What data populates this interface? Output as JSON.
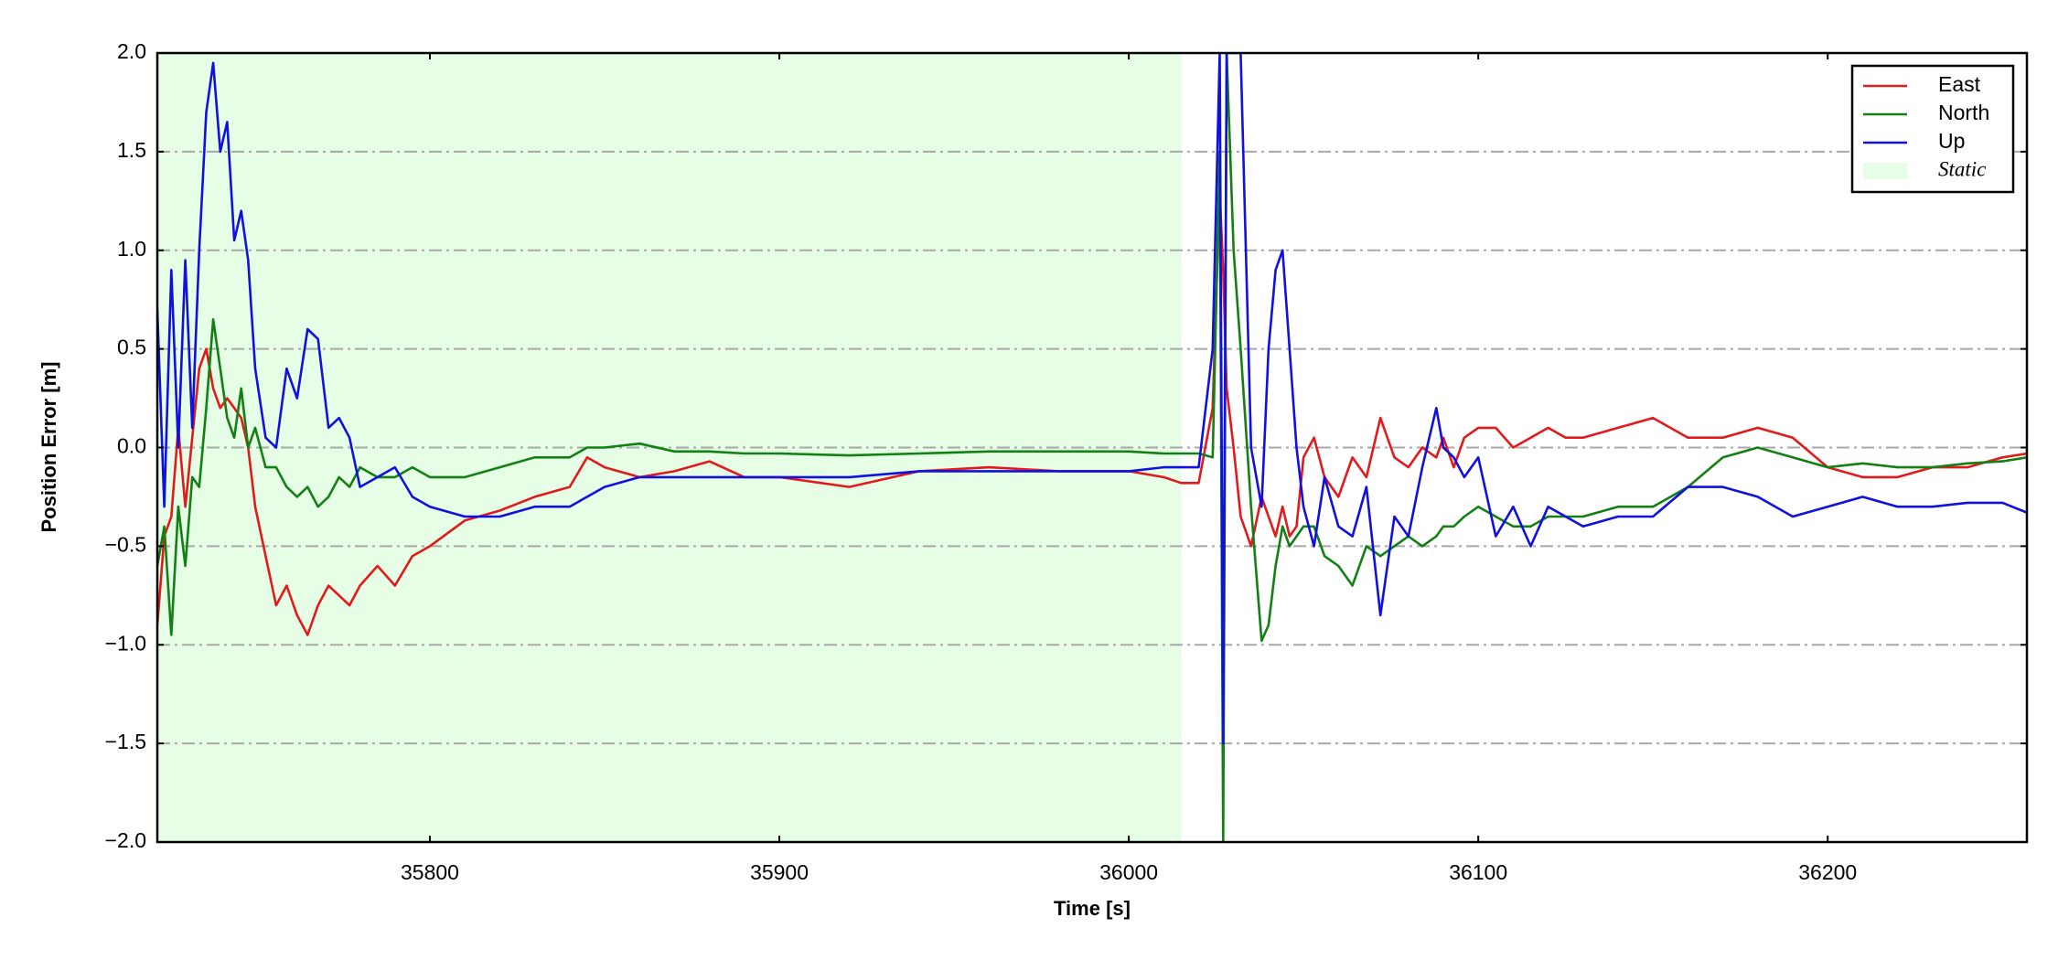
{
  "chart_data": {
    "type": "line",
    "xlabel": "Time [s]",
    "ylabel": "Position Error [m]",
    "xlim": [
      35722,
      36257
    ],
    "xticks": [
      35800,
      35900,
      36000,
      36100,
      36200
    ],
    "ylim": [
      -2,
      2
    ],
    "yticks": [
      {
        "value": -2,
        "label": "−2.0"
      },
      {
        "value": -1.5,
        "label": "−1.5"
      },
      {
        "value": -1,
        "label": "−1.0"
      },
      {
        "value": -0.5,
        "label": "−0.5"
      },
      {
        "value": 0,
        "label": "0.0"
      },
      {
        "value": 0.5,
        "label": "0.5"
      },
      {
        "value": 1,
        "label": "1.0"
      },
      {
        "value": 1.5,
        "label": "1.5"
      },
      {
        "value": 2,
        "label": "2.0"
      }
    ],
    "grid": true,
    "legend": "upper right",
    "bands": [
      {
        "name": "Static",
        "color": "#e6fde6",
        "range": [
          35722,
          36015
        ]
      }
    ],
    "x": [
      35722,
      35724,
      35726,
      35728,
      35730,
      35732,
      35734,
      35736,
      35738,
      35740,
      35742,
      35744,
      35746,
      35748,
      35750,
      35753,
      35756,
      35759,
      35762,
      35765,
      35768,
      35771,
      35774,
      35777,
      35780,
      35785,
      35790,
      35795,
      35800,
      35810,
      35820,
      35830,
      35840,
      35845,
      35850,
      35860,
      35870,
      35880,
      35890,
      35900,
      35920,
      35940,
      35960,
      35980,
      36000,
      36010,
      36015,
      36020,
      36024,
      36026,
      36027,
      36028,
      36030,
      36032,
      36035,
      36038,
      36040,
      36042,
      36044,
      36046,
      36048,
      36050,
      36053,
      36056,
      36060,
      36064,
      36068,
      36072,
      36076,
      36080,
      36084,
      36088,
      36090,
      36093,
      36096,
      36100,
      36105,
      36110,
      36115,
      36120,
      36125,
      36130,
      36140,
      36150,
      36160,
      36170,
      36180,
      36190,
      36200,
      36210,
      36220,
      36230,
      36240,
      36250,
      36257
    ],
    "series": [
      {
        "name": "East",
        "color": "#e31a1c",
        "values": [
          -0.9,
          -0.45,
          -0.35,
          0.1,
          -0.3,
          0.05,
          0.4,
          0.5,
          0.3,
          0.2,
          0.25,
          0.2,
          0.15,
          0.0,
          -0.3,
          -0.55,
          -0.8,
          -0.7,
          -0.85,
          -0.95,
          -0.8,
          -0.7,
          -0.75,
          -0.8,
          -0.7,
          -0.6,
          -0.7,
          -0.55,
          -0.5,
          -0.37,
          -0.32,
          -0.25,
          -0.2,
          -0.05,
          -0.1,
          -0.15,
          -0.12,
          -0.07,
          -0.15,
          -0.15,
          -0.2,
          -0.12,
          -0.1,
          -0.12,
          -0.12,
          -0.15,
          -0.18,
          -0.18,
          0.2,
          1.3,
          0.9,
          0.3,
          0.0,
          -0.35,
          -0.5,
          -0.25,
          -0.35,
          -0.45,
          -0.3,
          -0.45,
          -0.4,
          -0.05,
          0.05,
          -0.15,
          -0.25,
          -0.05,
          -0.15,
          0.15,
          -0.05,
          -0.1,
          0.0,
          -0.05,
          0.05,
          -0.1,
          0.05,
          0.1,
          0.1,
          0.0,
          0.05,
          0.1,
          0.05,
          0.05,
          0.1,
          0.15,
          0.05,
          0.05,
          0.1,
          0.05,
          -0.1,
          -0.15,
          -0.15,
          -0.1,
          -0.1,
          -0.05,
          -0.03
        ]
      },
      {
        "name": "North",
        "color": "#138013",
        "values": [
          -0.6,
          -0.4,
          -0.95,
          -0.3,
          -0.6,
          -0.15,
          -0.2,
          0.2,
          0.65,
          0.4,
          0.15,
          0.05,
          0.3,
          0.0,
          0.1,
          -0.1,
          -0.1,
          -0.2,
          -0.25,
          -0.2,
          -0.3,
          -0.25,
          -0.15,
          -0.2,
          -0.1,
          -0.15,
          -0.15,
          -0.1,
          -0.15,
          -0.15,
          -0.1,
          -0.05,
          -0.05,
          0.0,
          0.0,
          0.02,
          -0.02,
          -0.02,
          -0.03,
          -0.03,
          -0.04,
          -0.03,
          -0.02,
          -0.02,
          -0.02,
          -0.03,
          -0.03,
          -0.03,
          -0.05,
          1.5,
          -2.0,
          2.0,
          1.0,
          0.5,
          -0.3,
          -0.98,
          -0.9,
          -0.6,
          -0.4,
          -0.5,
          -0.45,
          -0.4,
          -0.4,
          -0.55,
          -0.6,
          -0.7,
          -0.5,
          -0.55,
          -0.5,
          -0.45,
          -0.5,
          -0.45,
          -0.4,
          -0.4,
          -0.35,
          -0.3,
          -0.35,
          -0.4,
          -0.4,
          -0.35,
          -0.35,
          -0.35,
          -0.3,
          -0.3,
          -0.2,
          -0.05,
          0.0,
          -0.05,
          -0.1,
          -0.08,
          -0.1,
          -0.1,
          -0.08,
          -0.07,
          -0.05
        ]
      },
      {
        "name": "Up",
        "color": "#1010e0",
        "values": [
          0.7,
          -0.3,
          0.9,
          0.0,
          0.95,
          0.1,
          1.0,
          1.7,
          1.95,
          1.5,
          1.65,
          1.05,
          1.2,
          0.95,
          0.4,
          0.05,
          0.0,
          0.4,
          0.25,
          0.6,
          0.55,
          0.1,
          0.15,
          0.05,
          -0.2,
          -0.15,
          -0.1,
          -0.25,
          -0.3,
          -0.35,
          -0.35,
          -0.3,
          -0.3,
          -0.25,
          -0.2,
          -0.15,
          -0.15,
          -0.15,
          -0.15,
          -0.15,
          -0.15,
          -0.12,
          -0.12,
          -0.12,
          -0.12,
          -0.1,
          -0.1,
          -0.1,
          0.5,
          2.0,
          -1.5,
          2.0,
          2.0,
          2.0,
          0.0,
          -0.3,
          0.5,
          0.9,
          1.0,
          0.5,
          0.0,
          -0.3,
          -0.5,
          -0.15,
          -0.4,
          -0.45,
          -0.2,
          -0.85,
          -0.35,
          -0.45,
          -0.1,
          0.2,
          0.0,
          -0.05,
          -0.15,
          -0.05,
          -0.45,
          -0.3,
          -0.5,
          -0.3,
          -0.35,
          -0.4,
          -0.35,
          -0.35,
          -0.2,
          -0.2,
          -0.25,
          -0.35,
          -0.3,
          -0.25,
          -0.3,
          -0.3,
          -0.28,
          -0.28,
          -0.33
        ]
      }
    ]
  }
}
